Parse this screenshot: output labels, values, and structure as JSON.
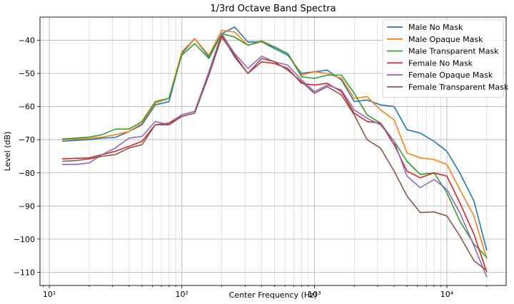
{
  "chart_data": {
    "type": "line",
    "title": "1/3rd Octave Band Spectra",
    "xlabel": "Center Frequency (Hz)",
    "ylabel": "Level (dB)",
    "xscale": "log",
    "xlim": [
      8.5,
      28000
    ],
    "ylim": [
      -114,
      -33
    ],
    "x_ticks": [
      10,
      100,
      1000,
      10000
    ],
    "x_tick_labels": [
      "10¹",
      "10²",
      "10³",
      "10⁴"
    ],
    "y_ticks": [
      -110,
      -100,
      -90,
      -80,
      -70,
      -60,
      -50,
      -40
    ],
    "y_tick_labels": [
      "−110",
      "−100",
      "−90",
      "−80",
      "−70",
      "−60",
      "−50",
      "−40"
    ],
    "grid": true,
    "legend": "top-right",
    "x": [
      12.5,
      16,
      20,
      25,
      31.5,
      40,
      50,
      63,
      80,
      100,
      125,
      160,
      200,
      250,
      315,
      400,
      500,
      630,
      800,
      1000,
      1250,
      1600,
      2000,
      2500,
      3150,
      4000,
      5000,
      6300,
      8000,
      10000,
      12500,
      16000,
      20000
    ],
    "series": [
      {
        "name": "Male No Mask",
        "color": "#1f77b4",
        "values": [
          -70.5,
          -70.2,
          -70.0,
          -69.5,
          -69.3,
          -67.5,
          -65.5,
          -59.5,
          -58.5,
          -44.0,
          -39.5,
          -45.0,
          -38.0,
          -36.0,
          -40.5,
          -40.5,
          -42.5,
          -44.5,
          -50.0,
          -49.5,
          -49.0,
          -52.0,
          -58.5,
          -58.0,
          -59.5,
          -60.0,
          -67.0,
          -68.0,
          -70.5,
          -73.5,
          -80.0,
          -88.5,
          -103.5
        ]
      },
      {
        "name": "Male Opaque Mask",
        "color": "#ff7f0e",
        "values": [
          -70.0,
          -69.8,
          -69.6,
          -69.2,
          -68.5,
          -67.5,
          -65.0,
          -59.0,
          -57.5,
          -43.5,
          -39.5,
          -44.5,
          -37.0,
          -37.5,
          -41.5,
          -40.5,
          -42.0,
          -44.0,
          -50.5,
          -49.5,
          -50.0,
          -51.5,
          -57.5,
          -57.0,
          -61.0,
          -64.0,
          -74.0,
          -75.5,
          -76.0,
          -77.5,
          -85.0,
          -93.0,
          -106.0
        ]
      },
      {
        "name": "Male Transparent Mask",
        "color": "#2ca02c",
        "values": [
          -69.8,
          -69.5,
          -69.2,
          -68.5,
          -66.8,
          -66.8,
          -64.5,
          -58.5,
          -57.5,
          -44.5,
          -41.0,
          -45.5,
          -38.0,
          -39.0,
          -41.5,
          -40.2,
          -42.0,
          -44.0,
          -51.0,
          -51.5,
          -50.5,
          -50.5,
          -56.0,
          -62.5,
          -65.0,
          -70.5,
          -76.5,
          -80.5,
          -80.0,
          -86.0,
          -94.5,
          -101.5,
          -105.5
        ]
      },
      {
        "name": "Female No Mask",
        "color": "#d62728",
        "values": [
          -75.8,
          -75.6,
          -75.5,
          -74.5,
          -73.5,
          -72.0,
          -70.5,
          -65.5,
          -65.0,
          -62.5,
          -61.5,
          -50.5,
          -39.0,
          -44.5,
          -50.0,
          -46.5,
          -47.0,
          -48.5,
          -53.0,
          -53.5,
          -53.0,
          -55.5,
          -62.0,
          -64.5,
          -65.0,
          -71.5,
          -79.5,
          -81.5,
          -80.0,
          -81.0,
          -89.0,
          -98.5,
          -110.0
        ]
      },
      {
        "name": "Female Opaque Mask",
        "color": "#9467bd",
        "values": [
          -77.5,
          -77.5,
          -77.0,
          -74.5,
          -72.5,
          -69.5,
          -69.0,
          -64.5,
          -65.5,
          -62.5,
          -61.5,
          -49.5,
          -38.0,
          -44.0,
          -48.5,
          -44.8,
          -46.5,
          -47.5,
          -52.0,
          -55.5,
          -53.5,
          -55.0,
          -61.0,
          -63.5,
          -65.5,
          -70.5,
          -81.0,
          -84.5,
          -82.0,
          -85.0,
          -92.0,
          -102.0,
          -111.5
        ]
      },
      {
        "name": "Female Transparent Mask",
        "color": "#8c564b",
        "values": [
          -76.5,
          -76.3,
          -75.8,
          -75.0,
          -74.5,
          -72.5,
          -71.5,
          -65.5,
          -65.5,
          -63.0,
          -62.0,
          -50.5,
          -38.5,
          -45.0,
          -50.0,
          -45.5,
          -46.5,
          -49.0,
          -52.5,
          -56.0,
          -54.0,
          -56.5,
          -62.5,
          -70.0,
          -72.5,
          -79.5,
          -87.0,
          -92.0,
          -91.8,
          -93.0,
          -99.0,
          -106.5,
          -109.5
        ]
      }
    ]
  }
}
